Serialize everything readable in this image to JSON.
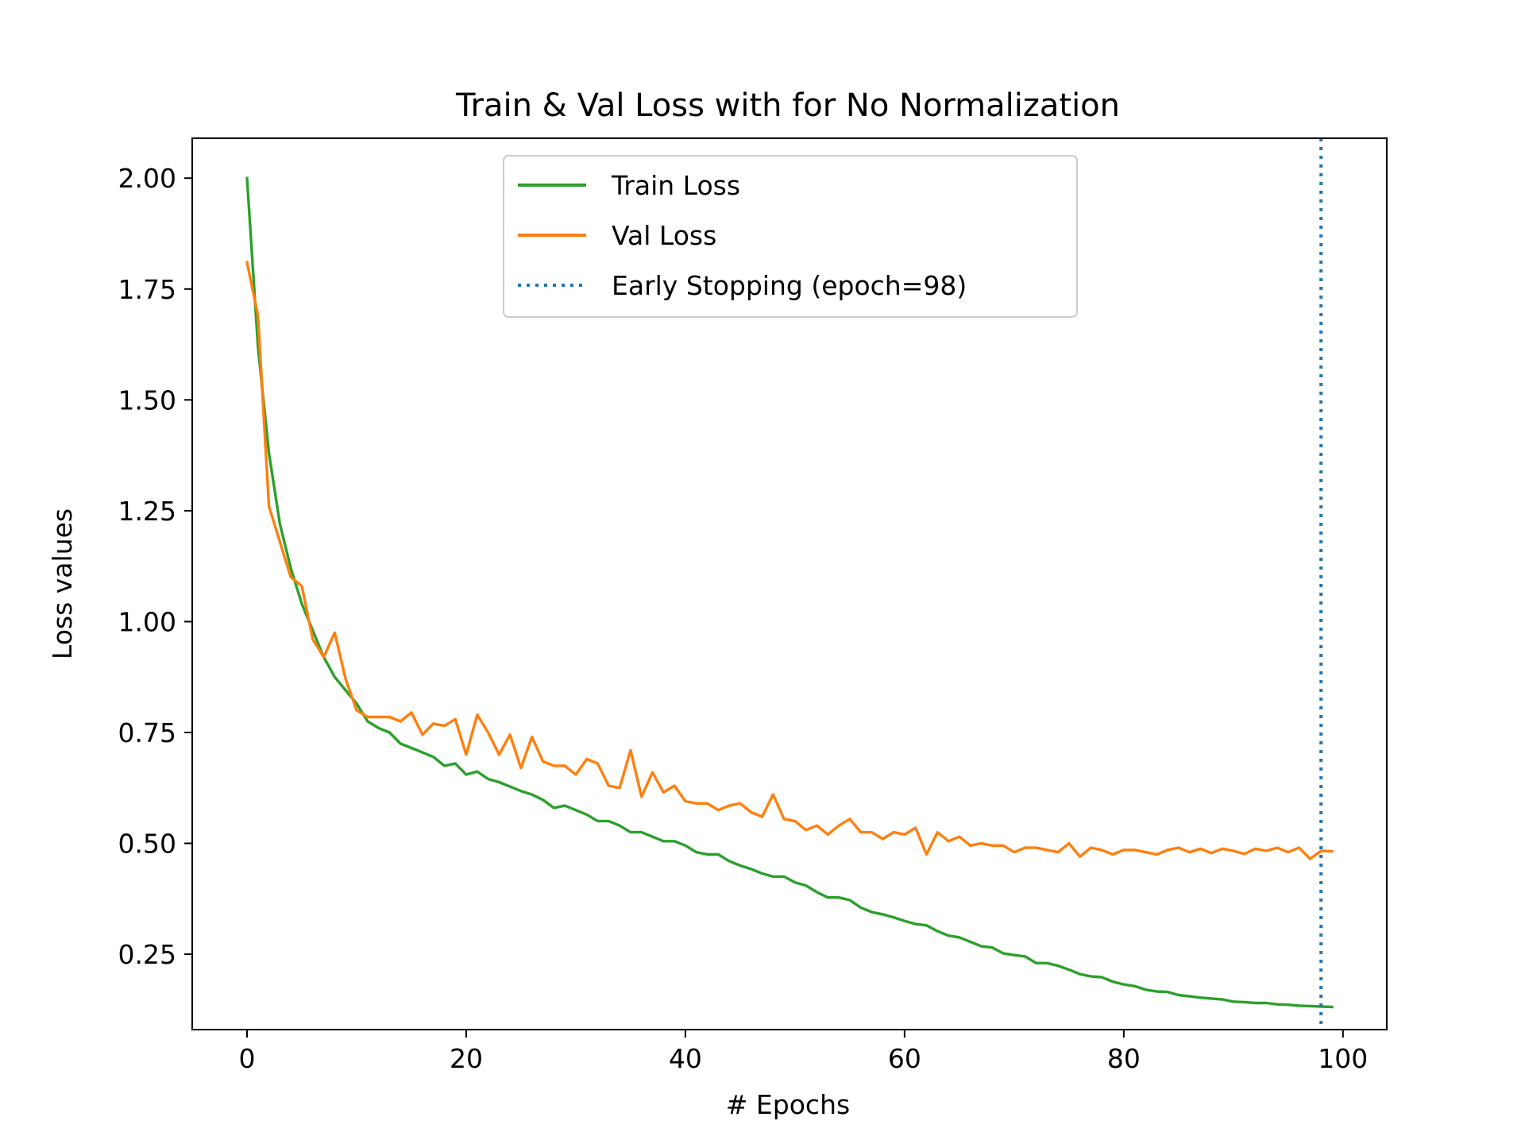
{
  "chart_data": {
    "type": "line",
    "title": "Train & Val Loss with for No Normalization",
    "xlabel": "# Epochs",
    "ylabel": "Loss values",
    "xlim": [
      -5,
      104
    ],
    "ylim": [
      0.08,
      2.09
    ],
    "xticks": [
      0,
      20,
      40,
      60,
      80,
      100
    ],
    "xtick_labels": [
      "0",
      "20",
      "40",
      "60",
      "80",
      "100"
    ],
    "yticks": [
      0.25,
      0.5,
      0.75,
      1.0,
      1.25,
      1.5,
      1.75,
      2.0
    ],
    "ytick_labels": [
      "0.25",
      "0.50",
      "0.75",
      "1.00",
      "1.25",
      "1.50",
      "1.75",
      "2.00"
    ],
    "grid": false,
    "legend_position": "upper-center",
    "series": [
      {
        "name": "Train Loss",
        "color": "#2ca02c",
        "style": "solid",
        "x": [
          0,
          1,
          2,
          3,
          4,
          5,
          6,
          7,
          8,
          9,
          10,
          11,
          12,
          13,
          14,
          15,
          16,
          17,
          18,
          19,
          20,
          21,
          22,
          23,
          24,
          25,
          26,
          27,
          28,
          29,
          30,
          31,
          32,
          33,
          34,
          35,
          36,
          37,
          38,
          39,
          40,
          41,
          42,
          43,
          44,
          45,
          46,
          47,
          48,
          49,
          50,
          51,
          52,
          53,
          54,
          55,
          56,
          57,
          58,
          59,
          60,
          61,
          62,
          63,
          64,
          65,
          66,
          67,
          68,
          69,
          70,
          71,
          72,
          73,
          74,
          75,
          76,
          77,
          78,
          79,
          80,
          81,
          82,
          83,
          84,
          85,
          86,
          87,
          88,
          89,
          90,
          91,
          92,
          93,
          94,
          95,
          96,
          97,
          98,
          99
        ],
        "values": [
          2.0,
          1.62,
          1.38,
          1.22,
          1.12,
          1.04,
          0.98,
          0.92,
          0.875,
          0.845,
          0.815,
          0.775,
          0.76,
          0.75,
          0.725,
          0.715,
          0.705,
          0.695,
          0.675,
          0.68,
          0.655,
          0.662,
          0.645,
          0.638,
          0.628,
          0.618,
          0.61,
          0.598,
          0.58,
          0.585,
          0.575,
          0.565,
          0.55,
          0.55,
          0.54,
          0.525,
          0.525,
          0.515,
          0.505,
          0.505,
          0.495,
          0.48,
          0.475,
          0.475,
          0.46,
          0.45,
          0.442,
          0.432,
          0.425,
          0.425,
          0.412,
          0.405,
          0.39,
          0.378,
          0.378,
          0.372,
          0.355,
          0.345,
          0.34,
          0.333,
          0.325,
          0.318,
          0.315,
          0.302,
          0.292,
          0.288,
          0.278,
          0.268,
          0.265,
          0.252,
          0.248,
          0.245,
          0.23,
          0.23,
          0.224,
          0.215,
          0.205,
          0.2,
          0.198,
          0.188,
          0.182,
          0.178,
          0.17,
          0.166,
          0.165,
          0.158,
          0.155,
          0.152,
          0.15,
          0.148,
          0.143,
          0.142,
          0.14,
          0.14,
          0.137,
          0.136,
          0.134,
          0.133,
          0.132,
          0.131
        ]
      },
      {
        "name": "Val Loss",
        "color": "#ff7f0e",
        "style": "solid",
        "x": [
          0,
          1,
          2,
          3,
          4,
          5,
          6,
          7,
          8,
          9,
          10,
          11,
          12,
          13,
          14,
          15,
          16,
          17,
          18,
          19,
          20,
          21,
          22,
          23,
          24,
          25,
          26,
          27,
          28,
          29,
          30,
          31,
          32,
          33,
          34,
          35,
          36,
          37,
          38,
          39,
          40,
          41,
          42,
          43,
          44,
          45,
          46,
          47,
          48,
          49,
          50,
          51,
          52,
          53,
          54,
          55,
          56,
          57,
          58,
          59,
          60,
          61,
          62,
          63,
          64,
          65,
          66,
          67,
          68,
          69,
          70,
          71,
          72,
          73,
          74,
          75,
          76,
          77,
          78,
          79,
          80,
          81,
          82,
          83,
          84,
          85,
          86,
          87,
          88,
          89,
          90,
          91,
          92,
          93,
          94,
          95,
          96,
          97,
          98,
          99
        ],
        "values": [
          1.81,
          1.69,
          1.26,
          1.18,
          1.1,
          1.08,
          0.96,
          0.92,
          0.975,
          0.87,
          0.8,
          0.785,
          0.785,
          0.785,
          0.775,
          0.795,
          0.745,
          0.77,
          0.765,
          0.78,
          0.7,
          0.79,
          0.75,
          0.7,
          0.745,
          0.67,
          0.74,
          0.685,
          0.675,
          0.675,
          0.655,
          0.69,
          0.68,
          0.63,
          0.625,
          0.71,
          0.605,
          0.66,
          0.615,
          0.63,
          0.595,
          0.59,
          0.59,
          0.575,
          0.585,
          0.59,
          0.57,
          0.56,
          0.61,
          0.555,
          0.55,
          0.53,
          0.54,
          0.52,
          0.54,
          0.555,
          0.525,
          0.525,
          0.51,
          0.525,
          0.52,
          0.535,
          0.475,
          0.525,
          0.505,
          0.515,
          0.495,
          0.5,
          0.495,
          0.495,
          0.48,
          0.49,
          0.49,
          0.485,
          0.48,
          0.5,
          0.47,
          0.49,
          0.485,
          0.475,
          0.485,
          0.485,
          0.48,
          0.475,
          0.485,
          0.49,
          0.48,
          0.488,
          0.478,
          0.488,
          0.483,
          0.476,
          0.488,
          0.483,
          0.49,
          0.48,
          0.49,
          0.465,
          0.483,
          0.482
        ]
      }
    ],
    "vlines": [
      {
        "name": "Early Stopping (epoch=98)",
        "x": 98,
        "color": "#1f77b4",
        "style": "dotted"
      }
    ]
  }
}
